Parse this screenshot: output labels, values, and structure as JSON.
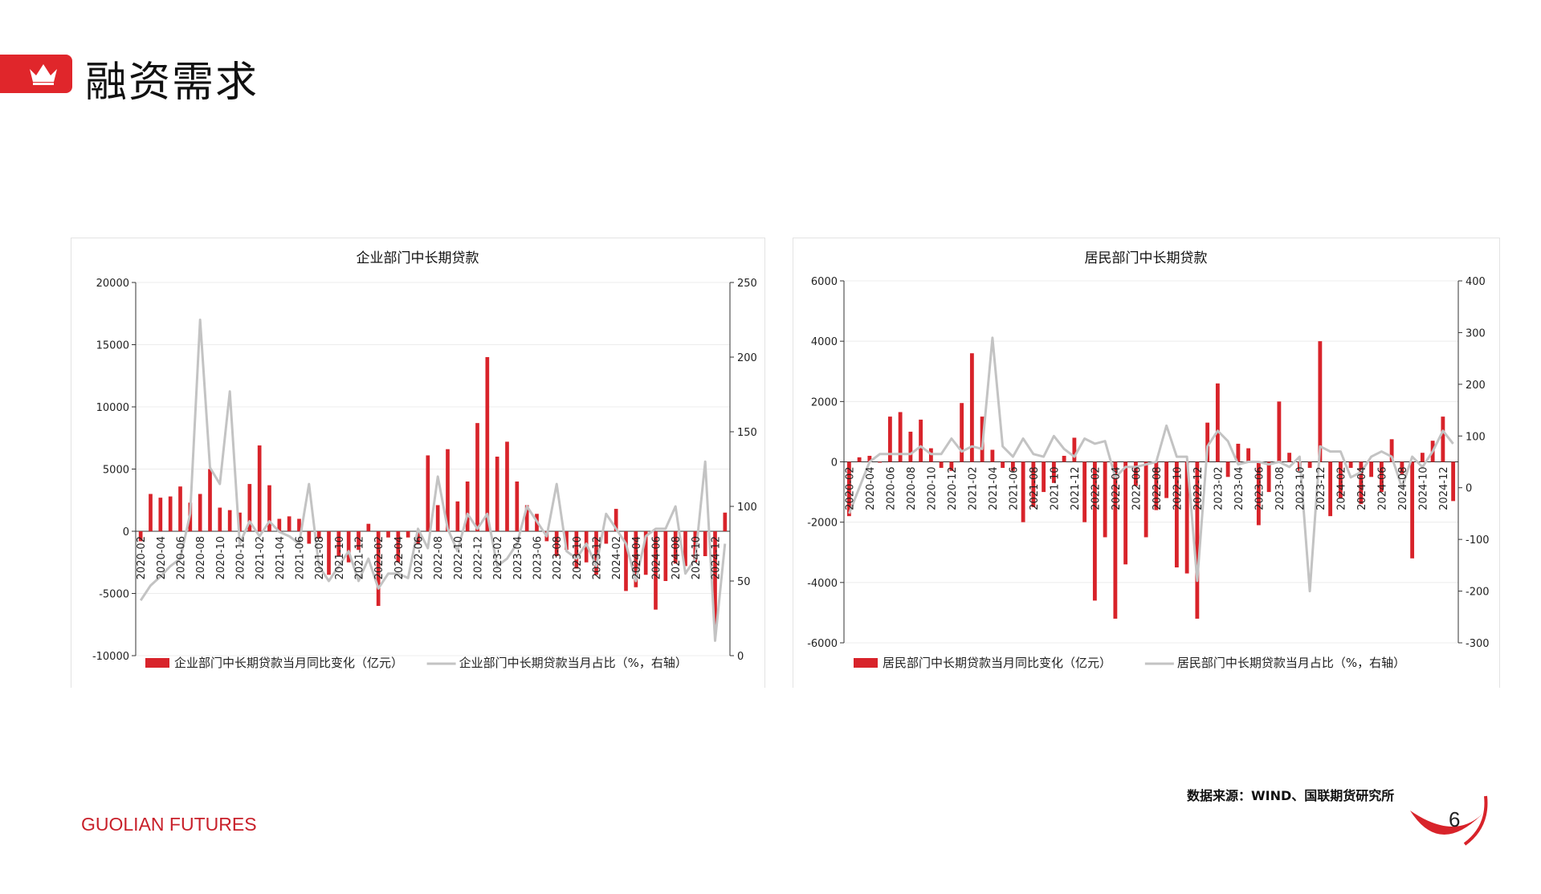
{
  "header": {
    "title": "融资需求",
    "icon": "crown-icon",
    "accent": "#e0262b"
  },
  "source": "数据来源：WIND、国联期货研究所",
  "brand": {
    "name": "GUOLIAN",
    "suffix": " FUTURES"
  },
  "page_number": "6",
  "colors": {
    "bar": "#d8232a",
    "line": "#c3c3c3",
    "grid": "#ececec",
    "axis": "#333333"
  },
  "chart_data": [
    {
      "type": "bar",
      "title": "企业部门中长期贷款",
      "x": [
        "2020-02",
        "2020-03",
        "2020-04",
        "2020-05",
        "2020-06",
        "2020-07",
        "2020-08",
        "2020-09",
        "2020-10",
        "2020-11",
        "2020-12",
        "2021-01",
        "2021-02",
        "2021-03",
        "2021-04",
        "2021-05",
        "2021-06",
        "2021-07",
        "2021-08",
        "2021-09",
        "2021-10",
        "2021-11",
        "2021-12",
        "2022-01",
        "2022-02",
        "2022-03",
        "2022-04",
        "2022-05",
        "2022-06",
        "2022-07",
        "2022-08",
        "2022-09",
        "2022-10",
        "2022-11",
        "2022-12",
        "2023-01",
        "2023-02",
        "2023-03",
        "2023-04",
        "2023-05",
        "2023-06",
        "2023-07",
        "2023-08",
        "2023-09",
        "2023-10",
        "2023-11",
        "2023-12",
        "2024-01",
        "2024-02",
        "2024-03",
        "2024-04",
        "2024-05",
        "2024-06",
        "2024-07",
        "2024-08",
        "2024-09",
        "2024-10",
        "2024-11",
        "2024-12",
        "2025-01"
      ],
      "xticks": [
        "2020-02",
        "2020-04",
        "2020-06",
        "2020-08",
        "2020-10",
        "2020-12",
        "2021-02",
        "2021-04",
        "2021-06",
        "2021-08",
        "2021-10",
        "2021-12",
        "2022-02",
        "2022-04",
        "2022-06",
        "2022-08",
        "2022-10",
        "2022-12",
        "2023-02",
        "2023-04",
        "2023-06",
        "2023-08",
        "2023-10",
        "2023-12",
        "2024-02",
        "2024-04",
        "2024-06",
        "2024-08",
        "2024-10",
        "2024-12"
      ],
      "series": [
        {
          "name": "企业部门中长期贷款当月同比变化（亿元）",
          "axis": "left",
          "kind": "bar",
          "values": [
            -800,
            3000,
            2700,
            2800,
            3600,
            2300,
            3000,
            5000,
            1900,
            1700,
            1500,
            3800,
            6900,
            3700,
            1000,
            1200,
            1000,
            -1000,
            -600,
            -3500,
            -2000,
            -2500,
            -1500,
            600,
            -6000,
            -500,
            -2500,
            -500,
            -1000,
            6100,
            2100,
            6600,
            2400,
            4000,
            8700,
            14000,
            6000,
            7200,
            4000,
            2100,
            1400,
            -800,
            -2000,
            -1500,
            -3000,
            -2500,
            -3500,
            -1000,
            1800,
            -4800,
            -4500,
            -3500,
            -6300,
            -4000,
            -2600,
            -2800,
            -2500,
            -2000,
            -7600,
            1500
          ]
        },
        {
          "name": "企业部门中长期贷款当月占比（%，右轴）",
          "axis": "right",
          "kind": "line",
          "values": [
            37,
            47,
            53,
            60,
            65,
            95,
            225,
            126,
            115,
            177,
            75,
            90,
            80,
            90,
            83,
            80,
            75,
            115,
            60,
            50,
            60,
            70,
            50,
            65,
            45,
            55,
            55,
            52,
            85,
            72,
            120,
            85,
            70,
            95,
            85,
            95,
            60,
            65,
            75,
            100,
            90,
            80,
            115,
            70,
            65,
            75,
            60,
            95,
            85,
            75,
            50,
            80,
            85,
            85,
            100,
            55,
            65,
            130,
            10,
            75
          ]
        }
      ],
      "ylim_left": [
        -10000,
        20000
      ],
      "yticks_left": [
        "-10000",
        "-5000",
        "0",
        "5000",
        "10000",
        "15000",
        "20000"
      ],
      "ylim_right": [
        0,
        250
      ],
      "yticks_right": [
        "0",
        "50",
        "100",
        "150",
        "200",
        "250"
      ],
      "grid": true,
      "legend": "bottom"
    },
    {
      "type": "bar",
      "title": "居民部门中长期贷款",
      "x": [
        "2020-02",
        "2020-03",
        "2020-04",
        "2020-05",
        "2020-06",
        "2020-07",
        "2020-08",
        "2020-09",
        "2020-10",
        "2020-11",
        "2020-12",
        "2021-01",
        "2021-02",
        "2021-03",
        "2021-04",
        "2021-05",
        "2021-06",
        "2021-07",
        "2021-08",
        "2021-09",
        "2021-10",
        "2021-11",
        "2021-12",
        "2022-01",
        "2022-02",
        "2022-03",
        "2022-04",
        "2022-05",
        "2022-06",
        "2022-07",
        "2022-08",
        "2022-09",
        "2022-10",
        "2022-11",
        "2022-12",
        "2023-01",
        "2023-02",
        "2023-03",
        "2023-04",
        "2023-05",
        "2023-06",
        "2023-07",
        "2023-08",
        "2023-09",
        "2023-10",
        "2023-11",
        "2023-12",
        "2024-01",
        "2024-02",
        "2024-03",
        "2024-04",
        "2024-05",
        "2024-06",
        "2024-07",
        "2024-08",
        "2024-09",
        "2024-10",
        "2024-11",
        "2024-12",
        "2025-01"
      ],
      "xticks": [
        "2020-02",
        "2020-04",
        "2020-06",
        "2020-08",
        "2020-10",
        "2020-12",
        "2021-02",
        "2021-04",
        "2021-06",
        "2021-08",
        "2021-10",
        "2021-12",
        "2022-02",
        "2022-04",
        "2022-06",
        "2022-08",
        "2022-10",
        "2022-12",
        "2023-02",
        "2023-04",
        "2023-06",
        "2023-08",
        "2023-10",
        "2023-12",
        "2024-02",
        "2024-04",
        "2024-06",
        "2024-08",
        "2024-10",
        "2024-12"
      ],
      "series": [
        {
          "name": "居民部门中长期贷款当月同比变化（亿元）",
          "axis": "left",
          "kind": "bar",
          "values": [
            -1800,
            150,
            200,
            0,
            1500,
            1650,
            1000,
            1400,
            450,
            -200,
            -300,
            1950,
            3600,
            1500,
            400,
            -200,
            -300,
            -2000,
            -1500,
            -1000,
            -700,
            200,
            800,
            -2000,
            -4600,
            -2500,
            -5200,
            -3400,
            -800,
            -2500,
            -1600,
            -1200,
            -3500,
            -3700,
            -5200,
            1300,
            2600,
            -500,
            600,
            450,
            -2100,
            -1000,
            2000,
            300,
            -300,
            -200,
            4000,
            -1800,
            -1200,
            -200,
            -1400,
            -500,
            -1000,
            750,
            -400,
            -3200,
            300,
            700,
            1500,
            -1300
          ]
        },
        {
          "name": "居民部门中长期贷款当月占比（%，右轴）",
          "axis": "right",
          "kind": "line",
          "values": [
            -50,
            0,
            50,
            65,
            65,
            65,
            65,
            80,
            65,
            65,
            95,
            70,
            80,
            75,
            290,
            80,
            60,
            95,
            65,
            60,
            100,
            75,
            60,
            95,
            85,
            90,
            20,
            40,
            40,
            45,
            50,
            120,
            60,
            60,
            -180,
            80,
            110,
            90,
            45,
            50,
            50,
            45,
            50,
            40,
            60,
            -200,
            80,
            70,
            70,
            20,
            30,
            60,
            70,
            60,
            0,
            60,
            40,
            70,
            110,
            85
          ]
        }
      ],
      "ylim_left": [
        -6000,
        6000
      ],
      "yticks_left": [
        "-6000",
        "-4000",
        "-2000",
        "0",
        "2000",
        "4000",
        "6000"
      ],
      "ylim_right": [
        -300,
        400
      ],
      "yticks_right": [
        "-300",
        "-200",
        "-100",
        "0",
        "100",
        "200",
        "300",
        "400"
      ],
      "grid": true,
      "legend": "bottom"
    }
  ]
}
